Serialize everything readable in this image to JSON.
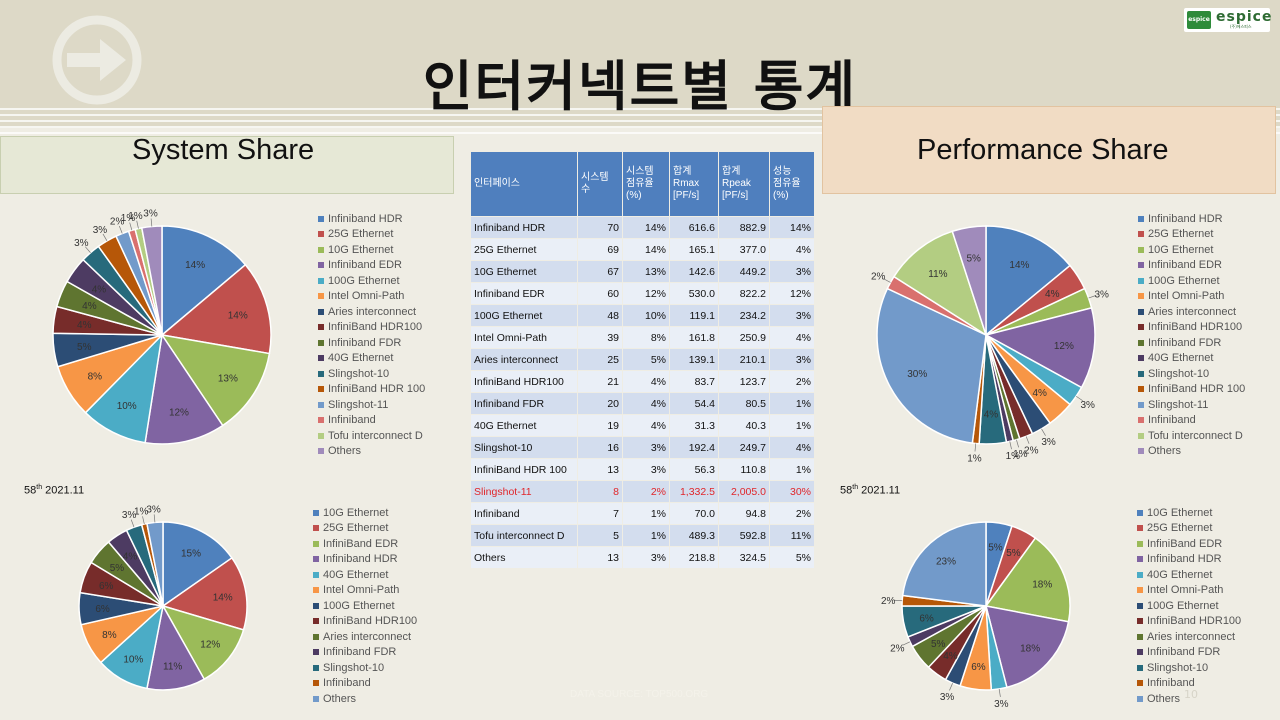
{
  "title": "인터커넥트별 통계",
  "logo": {
    "mark": "espice",
    "word": "espice",
    "sub": "(주)에스피스"
  },
  "left_header": "System Share",
  "right_header": "Performance Share",
  "caption_left": {
    "prefix": "58",
    "sup": "th",
    "suffix": " 2021.11"
  },
  "caption_right": {
    "prefix": "58",
    "sup": "th",
    "suffix": " 2021.11"
  },
  "source": "DATA SOURCE: TOP500.ORG",
  "page_number": "10",
  "table": {
    "headers": [
      "인터페이스",
      "시스템\n수",
      "시스템\n점유율\n(%)",
      "합계\nRmax\n[PF/s]",
      "합계\nRpeak\n[PF/s]",
      "성능\n점유율\n(%)"
    ],
    "rows": [
      [
        "Infiniband HDR",
        "70",
        "14%",
        "616.6",
        "882.9",
        "14%"
      ],
      [
        "25G Ethernet",
        "69",
        "14%",
        "165.1",
        "377.0",
        "4%"
      ],
      [
        "10G Ethernet",
        "67",
        "13%",
        "142.6",
        "449.2",
        "3%"
      ],
      [
        "Infiniband EDR",
        "60",
        "12%",
        "530.0",
        "822.2",
        "12%"
      ],
      [
        "100G Ethernet",
        "48",
        "10%",
        "119.1",
        "234.2",
        "3%"
      ],
      [
        "Intel Omni-Path",
        "39",
        "8%",
        "161.8",
        "250.9",
        "4%"
      ],
      [
        "Aries interconnect",
        "25",
        "5%",
        "139.1",
        "210.1",
        "3%"
      ],
      [
        "InfiniBand HDR100",
        "21",
        "4%",
        "83.7",
        "123.7",
        "2%"
      ],
      [
        "Infiniband FDR",
        "20",
        "4%",
        "54.4",
        "80.5",
        "1%"
      ],
      [
        "40G Ethernet",
        "19",
        "4%",
        "31.3",
        "40.3",
        "1%"
      ],
      [
        "Slingshot-10",
        "16",
        "3%",
        "192.4",
        "249.7",
        "4%"
      ],
      [
        "InfiniBand HDR 100",
        "13",
        "3%",
        "56.3",
        "110.8",
        "1%"
      ],
      [
        "Slingshot-11",
        "8",
        "2%",
        "1,332.5",
        "2,005.0",
        "30%"
      ],
      [
        "Infiniband",
        "7",
        "1%",
        "70.0",
        "94.8",
        "2%"
      ],
      [
        "Tofu interconnect D",
        "5",
        "1%",
        "489.3",
        "592.8",
        "11%"
      ],
      [
        "Others",
        "13",
        "3%",
        "218.8",
        "324.5",
        "5%"
      ]
    ],
    "highlight_row": 12,
    "highlight_color": "#e0262b"
  },
  "chart_data": [
    {
      "type": "pie",
      "title": "System Share",
      "categories": [
        "Infiniband HDR",
        "25G Ethernet",
        "10G Ethernet",
        "Infiniband EDR",
        "100G Ethernet",
        "Intel Omni-Path",
        "Aries interconnect",
        "InfiniBand HDR100",
        "Infiniband FDR",
        "40G Ethernet",
        "Slingshot-10",
        "InfiniBand HDR 100",
        "Slingshot-11",
        "Infiniband",
        "Tofu interconnect D",
        "Others"
      ],
      "values": [
        14,
        14,
        13,
        12,
        10,
        8,
        5,
        4,
        4,
        4,
        3,
        3,
        2,
        1,
        1,
        3
      ],
      "labels": [
        "14%",
        "14%",
        "13%",
        "12%",
        "10%",
        "8%",
        "5%",
        "4%",
        "4%",
        "4%",
        "3%",
        "3%",
        "2%",
        "1%",
        "1%",
        "3%"
      ],
      "colors": [
        "#4f81bd",
        "#c0504d",
        "#9bbb59",
        "#8064a2",
        "#4bacc6",
        "#f79646",
        "#2c4d75",
        "#772c2a",
        "#5f7530",
        "#4d3b62",
        "#276a7c",
        "#b65708",
        "#729aca",
        "#d9706e",
        "#b3cd82",
        "#a08bbb"
      ],
      "legend_position": "right"
    },
    {
      "type": "pie",
      "title": "Performance Share",
      "categories": [
        "Infiniband HDR",
        "25G Ethernet",
        "10G Ethernet",
        "Infiniband EDR",
        "100G Ethernet",
        "Intel Omni-Path",
        "Aries interconnect",
        "InfiniBand HDR100",
        "Infiniband FDR",
        "40G Ethernet",
        "Slingshot-10",
        "InfiniBand HDR 100",
        "Slingshot-11",
        "Infiniband",
        "Tofu interconnect D",
        "Others"
      ],
      "values": [
        14,
        4,
        3,
        12,
        3,
        4,
        3,
        2,
        1,
        1,
        4,
        1,
        30,
        2,
        11,
        5
      ],
      "labels": [
        "14%",
        "4%",
        "3%",
        "12%",
        "3%",
        "4%",
        "3%",
        "2%",
        "1%",
        "1%",
        "4%",
        "1%",
        "30%",
        "2%",
        "11%",
        "5%"
      ],
      "colors": [
        "#4f81bd",
        "#c0504d",
        "#9bbb59",
        "#8064a2",
        "#4bacc6",
        "#f79646",
        "#2c4d75",
        "#772c2a",
        "#5f7530",
        "#4d3b62",
        "#276a7c",
        "#b65708",
        "#729aca",
        "#d9706e",
        "#b3cd82",
        "#a08bbb"
      ],
      "legend_position": "right"
    },
    {
      "type": "pie",
      "title": "",
      "categories": [
        "10G Ethernet",
        "25G Ethernet",
        "InfiniBand EDR",
        "Infiniband HDR",
        "40G Ethernet",
        "Intel Omni-Path",
        "100G Ethernet",
        "InfiniBand HDR100",
        "Aries interconnect",
        "Infiniband FDR",
        "Slingshot-10",
        "Infiniband",
        "Others"
      ],
      "values": [
        15,
        14,
        12,
        11,
        10,
        8,
        6,
        6,
        5,
        4,
        3,
        1,
        3
      ],
      "labels": [
        "15%",
        "14%",
        "12%",
        "11%",
        "10%",
        "8%",
        "6%",
        "6%",
        "5%",
        "4%",
        "3%",
        "1%",
        "3%"
      ],
      "colors": [
        "#4f81bd",
        "#c0504d",
        "#9bbb59",
        "#8064a2",
        "#4bacc6",
        "#f79646",
        "#2c4d75",
        "#772c2a",
        "#5f7530",
        "#4d3b62",
        "#276a7c",
        "#b65708",
        "#729aca"
      ],
      "legend_position": "right"
    },
    {
      "type": "pie",
      "title": "",
      "categories": [
        "10G Ethernet",
        "25G Ethernet",
        "InfiniBand EDR",
        "Infiniband HDR",
        "40G Ethernet",
        "Intel Omni-Path",
        "100G Ethernet",
        "InfiniBand HDR100",
        "Aries interconnect",
        "Infiniband FDR",
        "Slingshot-10",
        "Infiniband",
        "Others"
      ],
      "values": [
        5,
        5,
        18,
        18,
        3,
        6,
        3,
        4,
        5,
        2,
        6,
        2,
        23
      ],
      "labels": [
        "5%",
        "5%",
        "18%",
        "18%",
        "3%",
        "6%",
        "3%",
        "4%",
        "5%",
        "2%",
        "6%",
        "2%",
        "23%"
      ],
      "colors": [
        "#4f81bd",
        "#c0504d",
        "#9bbb59",
        "#8064a2",
        "#4bacc6",
        "#f79646",
        "#2c4d75",
        "#772c2a",
        "#5f7530",
        "#4d3b62",
        "#276a7c",
        "#b65708",
        "#729aca"
      ],
      "legend_position": "right"
    }
  ]
}
